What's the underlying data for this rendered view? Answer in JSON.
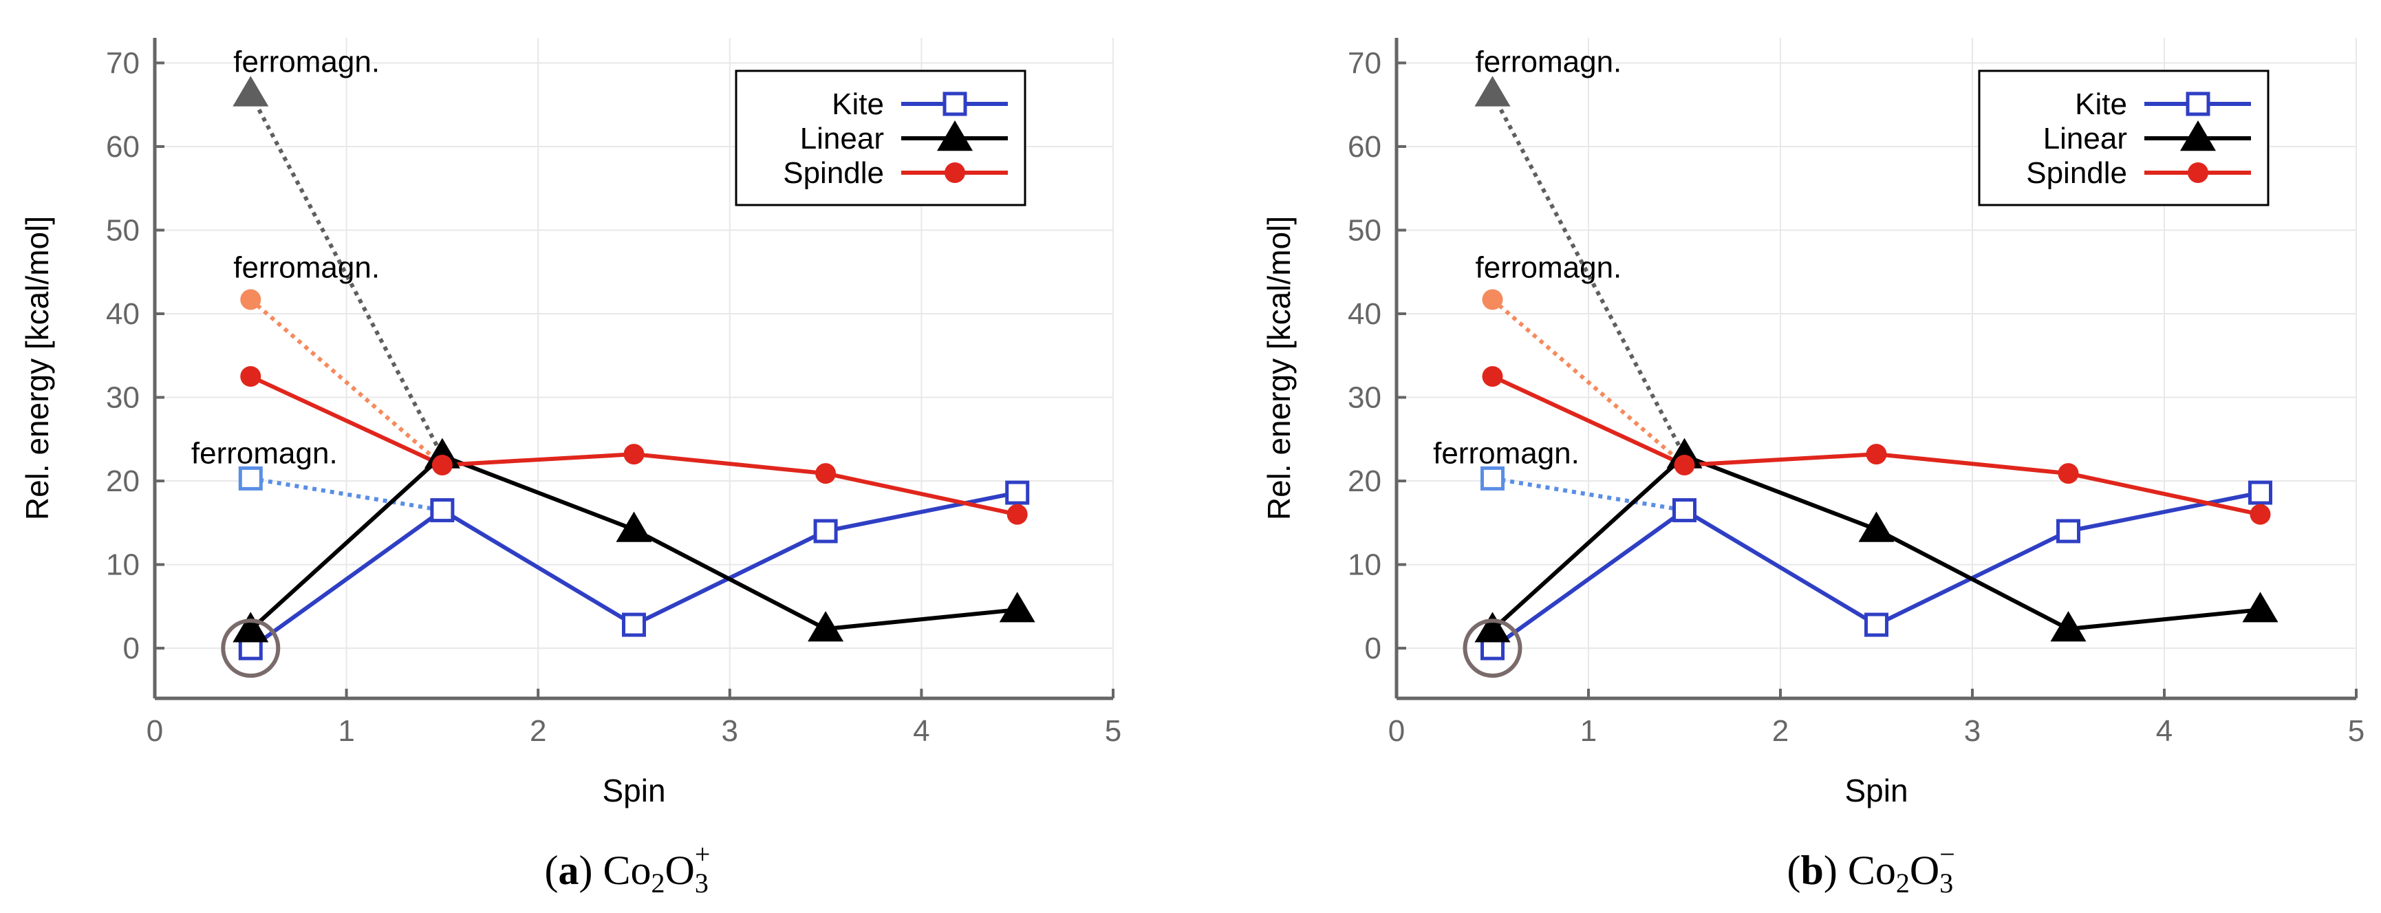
{
  "figure": {
    "colors": {
      "kite": "#2f3fc4",
      "kite_ferro": "#5a8ee6",
      "linear": "#000000",
      "linear_ferro": "#5f5f5f",
      "spindle": "#e0261c",
      "spindle_ferro": "#f58a5c",
      "axis": "#666666",
      "grid": "#e8e8e8",
      "highlight": "#7a6a6a"
    }
  },
  "chart_data": [
    {
      "type": "line",
      "panel_label": "a",
      "caption_formula": {
        "base": "Co",
        "sub1": "2",
        "mid": "O",
        "sub2": "3",
        "sup": "+"
      },
      "xlabel": "Spin",
      "ylabel": "Rel. energy [kcal/mol]",
      "xlim": [
        0,
        5
      ],
      "ylim": [
        -6,
        73
      ],
      "xticks": [
        0,
        1,
        2,
        3,
        4,
        5
      ],
      "yticks": [
        0,
        10,
        20,
        30,
        40,
        50,
        60,
        70
      ],
      "grid": true,
      "legend_position": "top-right",
      "series": [
        {
          "name": "Kite",
          "key": "kite",
          "marker": "square",
          "x": [
            0.5,
            1.5,
            2.5,
            3.5,
            4.5
          ],
          "y": [
            0.0,
            16.5,
            2.8,
            14.0,
            18.6
          ]
        },
        {
          "name": "Linear",
          "key": "linear",
          "marker": "triangle",
          "x": [
            0.5,
            1.5,
            2.5,
            3.5,
            4.5
          ],
          "y": [
            2.2,
            23.0,
            14.2,
            2.3,
            4.6
          ]
        },
        {
          "name": "Spindle",
          "key": "spindle",
          "marker": "circle",
          "x": [
            0.5,
            1.5,
            2.5,
            3.5,
            4.5
          ],
          "y": [
            32.5,
            21.9,
            23.2,
            20.9,
            16.0
          ]
        }
      ],
      "ferromagnetic": [
        {
          "key": "linear",
          "label": "ferromagn.",
          "x": 0.5,
          "y": 66.3,
          "to_x": 1.5,
          "to_y": 23.0
        },
        {
          "key": "spindle",
          "label": "ferromagn.",
          "x": 0.5,
          "y": 41.7,
          "to_x": 1.5,
          "to_y": 21.9
        },
        {
          "key": "kite",
          "label": "ferromagn.",
          "x": 0.5,
          "y": 20.3,
          "to_x": 1.5,
          "to_y": 16.5
        }
      ],
      "highlight": {
        "x": 0.5,
        "y": 0.0
      }
    },
    {
      "type": "line",
      "panel_label": "b",
      "caption_formula": {
        "base": "Co",
        "sub1": "2",
        "mid": "O",
        "sub2": "3",
        "sup": "−"
      },
      "xlabel": "Spin",
      "ylabel": "Rel. energy [kcal/mol]",
      "xlim": [
        0,
        5
      ],
      "ylim": [
        -6,
        73
      ],
      "xticks": [
        0,
        1,
        2,
        3,
        4,
        5
      ],
      "yticks": [
        0,
        10,
        20,
        30,
        40,
        50,
        60,
        70
      ],
      "grid": true,
      "legend_position": "top-right",
      "series": [
        {
          "name": "Kite",
          "key": "kite",
          "marker": "square",
          "x": [
            0.5,
            1.5,
            2.5,
            3.5,
            4.5
          ],
          "y": [
            0.0,
            16.5,
            2.8,
            14.0,
            18.6
          ]
        },
        {
          "name": "Linear",
          "key": "linear",
          "marker": "triangle",
          "x": [
            0.5,
            1.5,
            2.5,
            3.5,
            4.5
          ],
          "y": [
            2.2,
            23.0,
            14.2,
            2.3,
            4.6
          ]
        },
        {
          "name": "Spindle",
          "key": "spindle",
          "marker": "circle",
          "x": [
            0.5,
            1.5,
            2.5,
            3.5,
            4.5
          ],
          "y": [
            32.5,
            21.9,
            23.2,
            20.9,
            16.0
          ]
        }
      ],
      "ferromagnetic": [
        {
          "key": "linear",
          "label": "ferromagn.",
          "x": 0.5,
          "y": 66.3,
          "to_x": 1.5,
          "to_y": 23.0
        },
        {
          "key": "spindle",
          "label": "ferromagn.",
          "x": 0.5,
          "y": 41.7,
          "to_x": 1.5,
          "to_y": 21.9
        },
        {
          "key": "kite",
          "label": "ferromagn.",
          "x": 0.5,
          "y": 20.3,
          "to_x": 1.5,
          "to_y": 16.5
        }
      ],
      "highlight": {
        "x": 0.5,
        "y": 0.0
      }
    }
  ]
}
